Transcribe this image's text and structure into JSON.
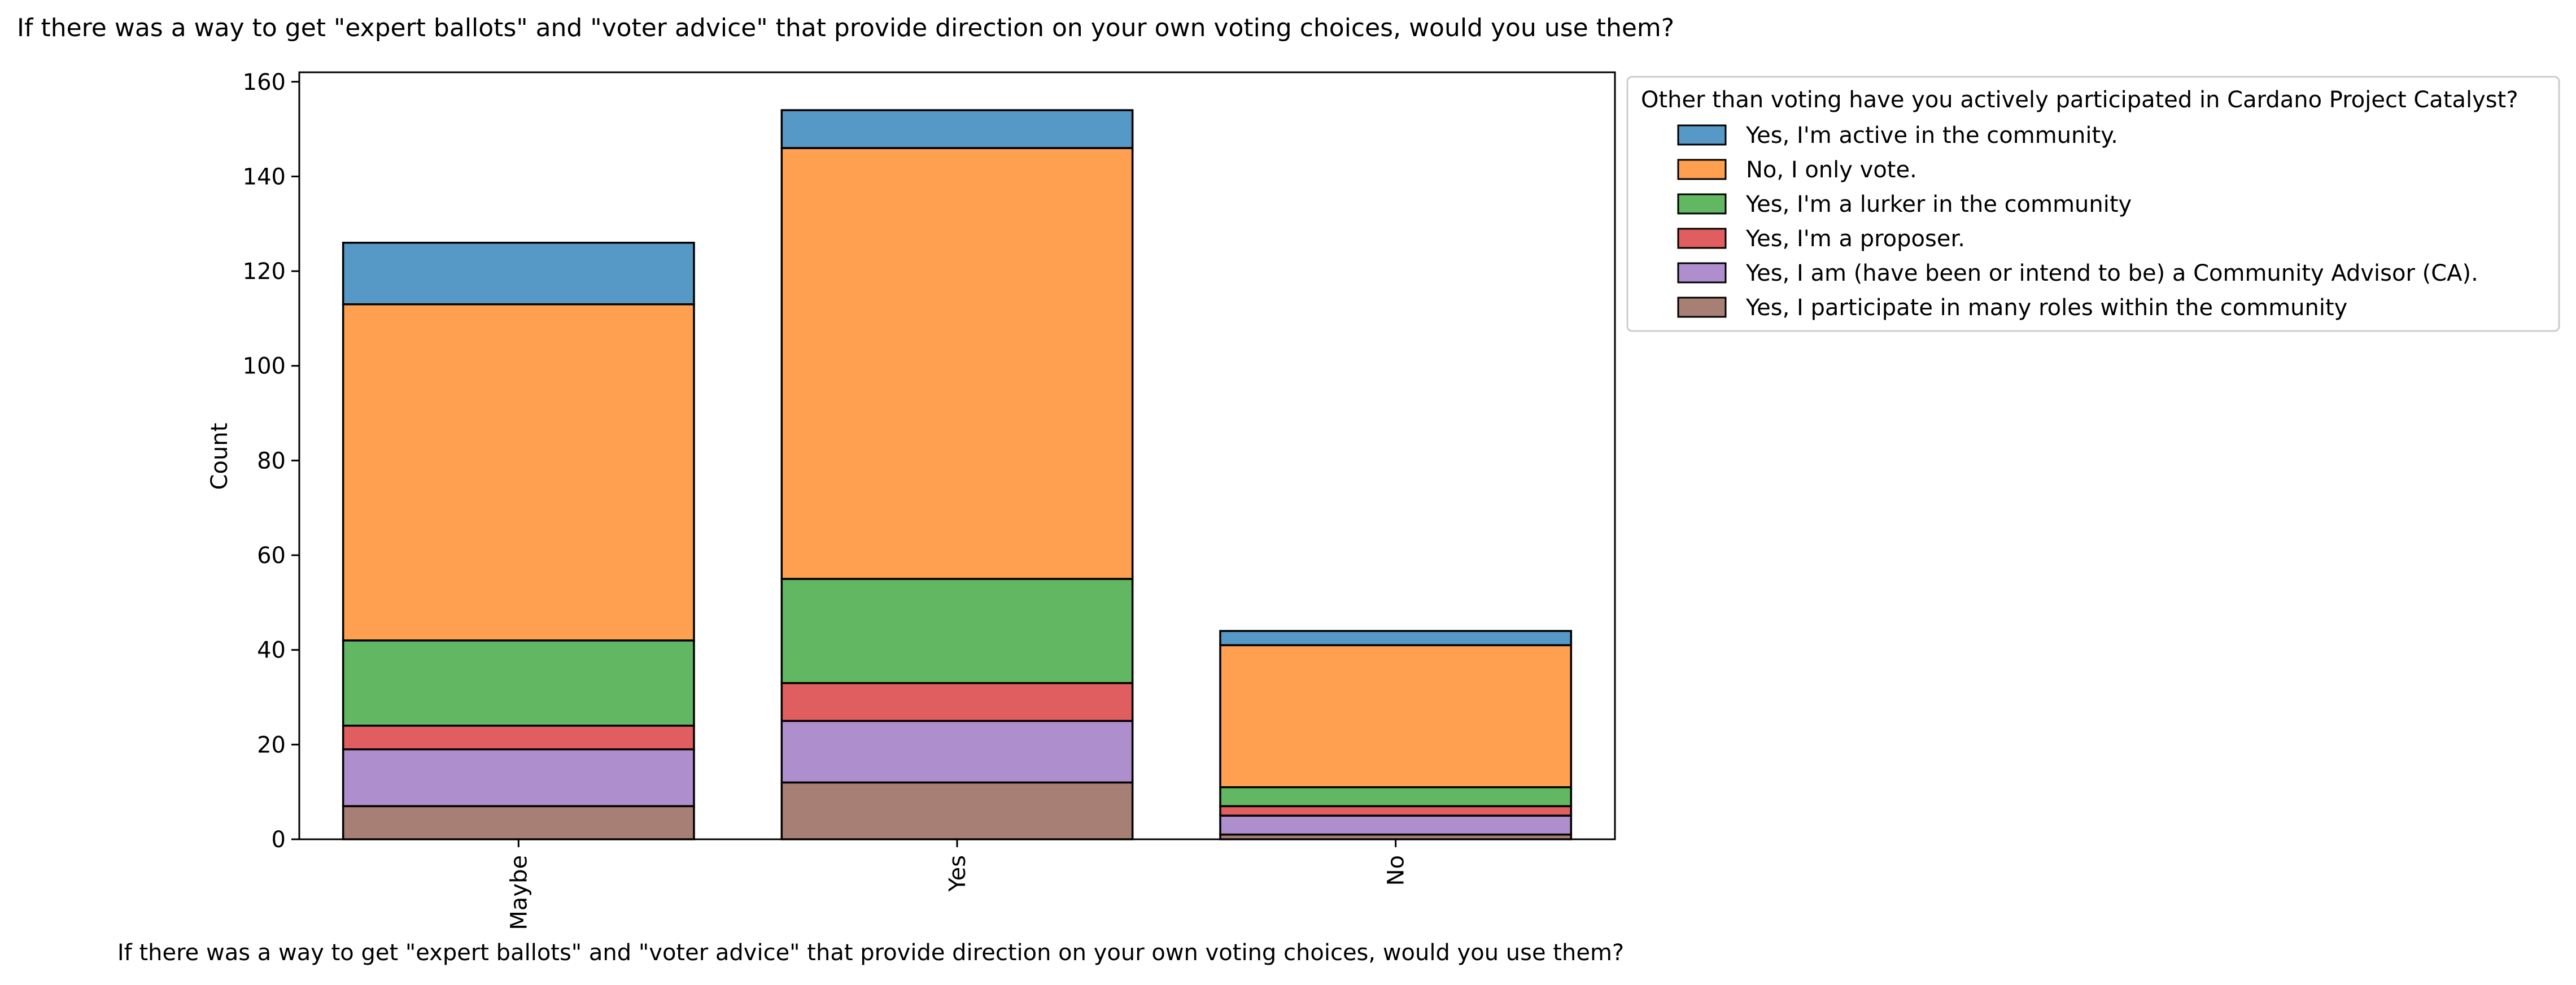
{
  "chart_data": {
    "type": "bar",
    "stacked": true,
    "title": "If there was a way to get \"expert ballots\" and \"voter advice\" that provide direction on your own voting choices, would you use them?",
    "xlabel": "If there was a way to get \"expert ballots\" and \"voter advice\" that provide direction on your own voting choices, would you use them?",
    "ylabel": "Count",
    "categories": [
      "Maybe",
      "Yes",
      "No"
    ],
    "ylim": [
      0,
      162
    ],
    "yticks": [
      0,
      20,
      40,
      60,
      80,
      100,
      120,
      140,
      160
    ],
    "grid": false,
    "legend": {
      "title": "Other than voting have you actively participated in Cardano Project Catalyst?",
      "placement": "outside-top-right"
    },
    "series": [
      {
        "name": "Yes, I participate in many roles within the community",
        "color": "#a77f75",
        "values": [
          7,
          12,
          1
        ]
      },
      {
        "name": "Yes, I am (have been or intend to be) a Community Advisor (CA).",
        "color": "#af8ecd",
        "values": [
          12,
          13,
          4
        ]
      },
      {
        "name": "Yes, I'm a proposer.",
        "color": "#e05e60",
        "values": [
          5,
          8,
          2
        ]
      },
      {
        "name": "Yes, I'm a lurker in the community",
        "color": "#62b862",
        "values": [
          18,
          22,
          4
        ]
      },
      {
        "name": "No, I only vote.",
        "color": "#fea04f",
        "values": [
          71,
          91,
          30
        ]
      },
      {
        "name": "Yes, I'm active in the community.",
        "color": "#5698c6",
        "values": [
          13,
          8,
          3
        ]
      }
    ],
    "legend_order": [
      "Yes, I'm active in the community.",
      "No, I only vote.",
      "Yes, I'm a lurker in the community",
      "Yes, I'm a proposer.",
      "Yes, I am (have been or intend to be) a Community Advisor (CA).",
      "Yes, I participate in many roles within the community"
    ]
  }
}
